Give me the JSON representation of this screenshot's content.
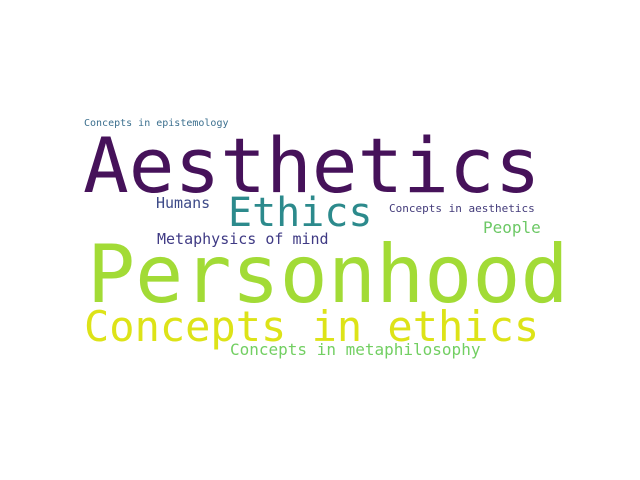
{
  "words": {
    "epistemology": {
      "text": "Concepts in epistemology",
      "color": "#3b6f8e"
    },
    "aesthetics": {
      "text": "Aesthetics",
      "color": "#46125a"
    },
    "humans": {
      "text": "Humans",
      "color": "#3d4a88"
    },
    "ethics": {
      "text": "Ethics",
      "color": "#2c8a8c"
    },
    "concepts_in_aesthetics": {
      "text": "Concepts in aesthetics",
      "color": "#433b7a"
    },
    "people": {
      "text": "People",
      "color": "#6cc865"
    },
    "metaphysics_of_mind": {
      "text": "Metaphysics of mind",
      "color": "#3f3a84"
    },
    "personhood": {
      "text": "Personhood",
      "color": "#a2db36"
    },
    "concepts_in_ethics": {
      "text": "Concepts in ethics",
      "color": "#dde318"
    },
    "concepts_in_metaphilosophy": {
      "text": "Concepts in metaphilosophy",
      "color": "#72cf62"
    }
  }
}
